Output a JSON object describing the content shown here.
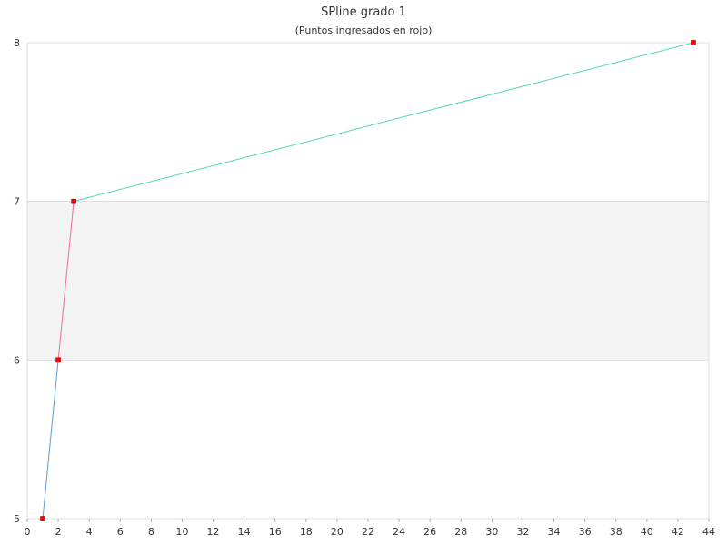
{
  "chart_data": {
    "type": "line",
    "title": "SPline grado 1",
    "subtitle": "(Puntos ingresados en rojo)",
    "xlabel": "",
    "ylabel": "",
    "xlim": [
      0,
      44
    ],
    "ylim": [
      5,
      8
    ],
    "x_ticks": [
      0,
      2,
      4,
      6,
      8,
      10,
      12,
      14,
      16,
      18,
      20,
      22,
      24,
      26,
      28,
      30,
      32,
      34,
      36,
      38,
      40,
      42,
      44
    ],
    "y_ticks": [
      5,
      6,
      7,
      8
    ],
    "grid": "horizontal bands",
    "band_colors": [
      "#ffffff",
      "#f3f3f3",
      "#ffffff"
    ],
    "series": [
      {
        "color": "#5b9bd5",
        "points": [
          [
            1,
            5
          ],
          [
            2,
            6
          ]
        ]
      },
      {
        "color": "#f06c9b",
        "points": [
          [
            2,
            6
          ],
          [
            3,
            7
          ]
        ]
      },
      {
        "color": "#50d8b4",
        "points": [
          [
            3,
            7
          ],
          [
            43,
            8
          ]
        ]
      }
    ],
    "input_points": {
      "color": "#ff0000",
      "points": [
        [
          1,
          5
        ],
        [
          2,
          6
        ],
        [
          3,
          7
        ],
        [
          43,
          8
        ]
      ]
    }
  }
}
